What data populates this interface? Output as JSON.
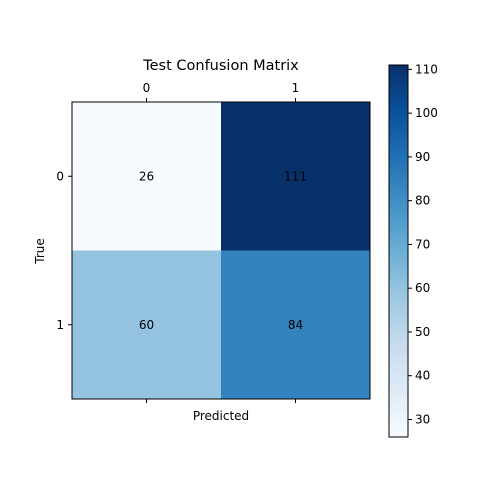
{
  "chart_data": {
    "type": "heatmap",
    "title": "Test Confusion Matrix",
    "xlabel": "Predicted",
    "ylabel": "True",
    "x_categories": [
      "0",
      "1"
    ],
    "y_categories": [
      "0",
      "1"
    ],
    "values": [
      [
        26,
        111
      ],
      [
        60,
        84
      ]
    ],
    "colormap": "Blues",
    "colorbar": {
      "range": [
        26,
        111
      ],
      "ticks": [
        30,
        40,
        50,
        60,
        70,
        80,
        90,
        100,
        110
      ],
      "tick_labels": [
        "30",
        "40",
        "50",
        "60",
        "70",
        "80",
        "90",
        "100",
        "110"
      ]
    },
    "x_tick_position": "top",
    "grid": false
  }
}
